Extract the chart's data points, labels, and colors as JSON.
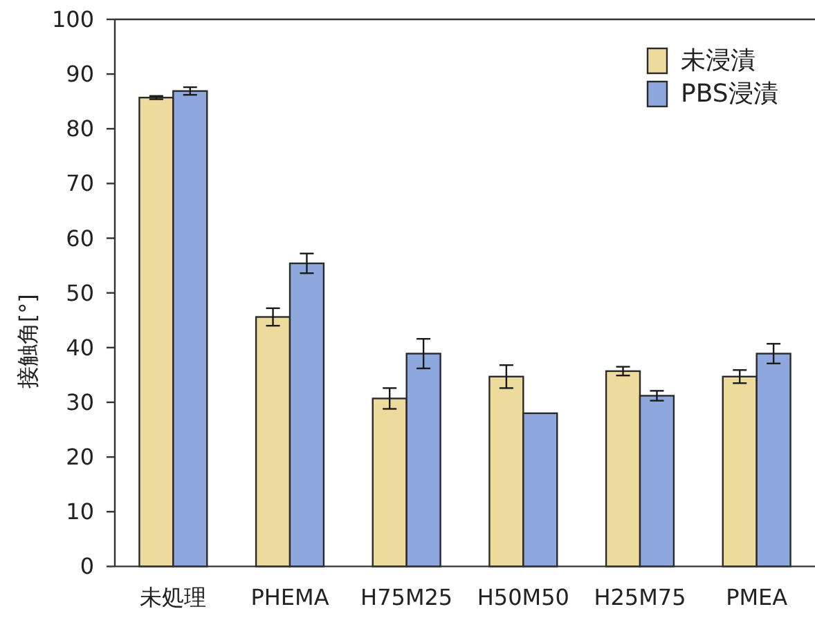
{
  "chart_data": {
    "type": "bar",
    "categories": [
      "未処理",
      "PHEMA",
      "H75M25",
      "H50M50",
      "H25M75",
      "PMEA"
    ],
    "series": [
      {
        "name": "未浸漬",
        "color": "#ecdb9d",
        "values": [
          85.7,
          45.6,
          30.7,
          34.7,
          35.7,
          34.7
        ],
        "errors": [
          0.3,
          1.6,
          1.9,
          2.1,
          0.8,
          1.2
        ]
      },
      {
        "name": "PBS浸漬",
        "color": "#8ea8de",
        "values": [
          86.9,
          55.4,
          38.9,
          28.0,
          31.2,
          38.9
        ],
        "errors": [
          0.7,
          1.8,
          2.7,
          null,
          0.9,
          1.8
        ]
      }
    ],
    "ylabel": "接触角[°]",
    "ylim": [
      0,
      100
    ],
    "yticks": [
      0,
      10,
      20,
      30,
      40,
      50,
      60,
      70,
      80,
      90,
      100
    ],
    "legend": "top right"
  }
}
